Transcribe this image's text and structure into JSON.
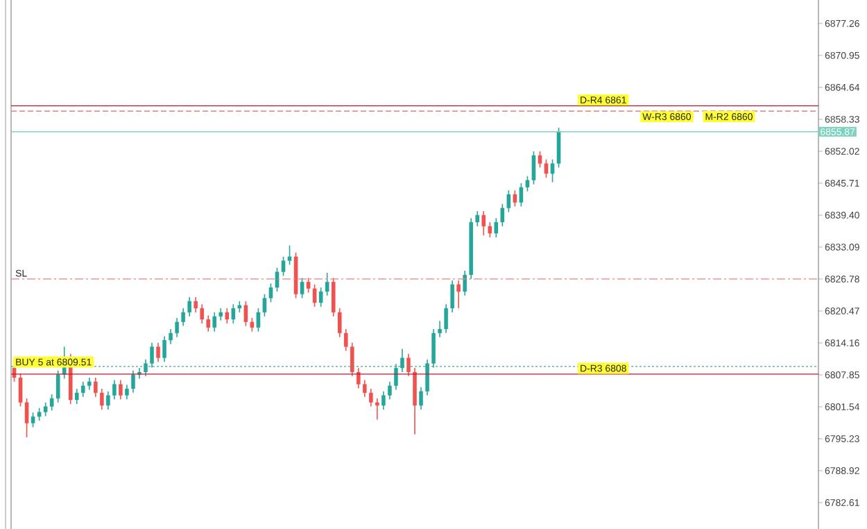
{
  "chart_data": {
    "type": "candlestick",
    "categories": [
      null,
      null,
      null,
      null,
      null,
      null,
      null,
      null,
      null,
      null,
      null,
      null,
      null,
      null,
      null,
      null,
      null,
      null,
      null,
      null,
      null,
      null,
      null,
      null,
      null,
      null,
      null,
      null,
      null,
      null,
      null,
      null,
      null,
      null,
      null,
      null,
      null,
      null,
      null,
      null,
      null,
      null,
      null,
      null,
      null,
      null,
      null,
      null,
      null,
      null,
      null,
      null,
      null,
      null,
      null,
      null,
      null,
      null,
      null,
      null,
      null,
      null,
      null,
      null,
      null,
      null,
      null,
      null,
      null,
      null,
      null,
      null,
      null,
      null,
      null,
      null,
      null,
      null,
      null,
      null,
      null,
      null,
      null,
      null,
      null,
      null,
      null,
      null,
      null,
      null,
      null,
      null,
      null,
      null,
      null,
      null,
      null,
      null,
      null,
      null,
      null,
      null,
      null,
      null,
      null,
      null,
      null,
      null,
      null,
      null,
      null,
      null,
      null,
      null,
      null,
      null,
      null,
      null,
      null,
      null,
      null,
      null,
      null,
      null,
      null,
      null,
      null,
      null,
      null
    ],
    "ohlc": [
      [
        6809.2,
        6810.0,
        6806.5,
        6807.3
      ],
      [
        6807.3,
        6808.1,
        6801.6,
        6802.4
      ],
      [
        6802.4,
        6803.2,
        6795.5,
        6798.3
      ],
      [
        6798.3,
        6800.4,
        6797.5,
        6799.6
      ],
      [
        6799.6,
        6801.3,
        6798.8,
        6800.5
      ],
      [
        6800.5,
        6802.4,
        6799.7,
        6801.6
      ],
      [
        6801.6,
        6804.0,
        6800.8,
        6803.2
      ],
      [
        6803.2,
        6808.7,
        6802.4,
        6807.9
      ],
      [
        6807.9,
        6813.4,
        6807.1,
        6811.2
      ],
      [
        6811.2,
        6812.0,
        6802.1,
        6802.9
      ],
      [
        6802.9,
        6805.1,
        6802.1,
        6804.3
      ],
      [
        6804.3,
        6806.5,
        6803.5,
        6805.7
      ],
      [
        6805.7,
        6807.3,
        6804.9,
        6806.5
      ],
      [
        6806.5,
        6807.3,
        6803.5,
        6804.3
      ],
      [
        6804.3,
        6805.1,
        6801.0,
        6801.8
      ],
      [
        6801.8,
        6804.6,
        6801.0,
        6803.8
      ],
      [
        6803.8,
        6806.8,
        6803.0,
        6806.0
      ],
      [
        6806.0,
        6806.8,
        6803.0,
        6803.8
      ],
      [
        6803.8,
        6805.9,
        6803.0,
        6805.1
      ],
      [
        6805.1,
        6808.7,
        6804.3,
        6807.9
      ],
      [
        6807.9,
        6809.2,
        6807.1,
        6808.4
      ],
      [
        6808.4,
        6810.9,
        6807.6,
        6810.1
      ],
      [
        6810.1,
        6814.2,
        6809.3,
        6813.4
      ],
      [
        6813.4,
        6814.2,
        6810.4,
        6811.2
      ],
      [
        6811.2,
        6815.5,
        6810.4,
        6814.7
      ],
      [
        6814.7,
        6816.9,
        6813.9,
        6816.1
      ],
      [
        6816.1,
        6819.1,
        6815.3,
        6818.3
      ],
      [
        6818.3,
        6821.0,
        6817.5,
        6820.2
      ],
      [
        6820.2,
        6823.2,
        6819.4,
        6822.4
      ],
      [
        6822.4,
        6823.2,
        6820.2,
        6821.0
      ],
      [
        6821.0,
        6821.8,
        6818.0,
        6818.8
      ],
      [
        6818.8,
        6819.6,
        6816.4,
        6817.2
      ],
      [
        6817.2,
        6820.2,
        6816.4,
        6819.4
      ],
      [
        6819.4,
        6821.0,
        6818.6,
        6820.2
      ],
      [
        6820.2,
        6821.0,
        6818.0,
        6818.8
      ],
      [
        6818.8,
        6821.8,
        6818.0,
        6821.0
      ],
      [
        6821.0,
        6822.4,
        6820.2,
        6821.6
      ],
      [
        6821.6,
        6822.4,
        6817.5,
        6818.3
      ],
      [
        6818.3,
        6819.1,
        6816.4,
        6817.2
      ],
      [
        6817.2,
        6821.0,
        6816.4,
        6820.2
      ],
      [
        6820.2,
        6823.8,
        6819.4,
        6823.0
      ],
      [
        6823.0,
        6825.9,
        6822.2,
        6825.1
      ],
      [
        6825.1,
        6829.0,
        6824.3,
        6828.2
      ],
      [
        6828.2,
        6831.2,
        6827.4,
        6830.4
      ],
      [
        6830.4,
        6833.4,
        6829.6,
        6831.2
      ],
      [
        6831.2,
        6832.0,
        6823.0,
        6823.8
      ],
      [
        6823.8,
        6827.0,
        6823.0,
        6826.2
      ],
      [
        6826.2,
        6827.0,
        6824.1,
        6824.9
      ],
      [
        6824.9,
        6825.7,
        6821.3,
        6822.1
      ],
      [
        6822.1,
        6825.1,
        6821.3,
        6824.3
      ],
      [
        6824.3,
        6828.0,
        6823.5,
        6826.2
      ],
      [
        6826.2,
        6827.0,
        6819.4,
        6820.2
      ],
      [
        6820.2,
        6821.0,
        6815.3,
        6816.1
      ],
      [
        6816.1,
        6816.9,
        6812.6,
        6813.4
      ],
      [
        6813.4,
        6814.2,
        6807.6,
        6808.4
      ],
      [
        6808.4,
        6809.2,
        6805.2,
        6806.0
      ],
      [
        6806.0,
        6806.8,
        6803.5,
        6804.3
      ],
      [
        6804.3,
        6805.1,
        6801.6,
        6802.4
      ],
      [
        6802.4,
        6803.2,
        6799.0,
        6801.8
      ],
      [
        6801.8,
        6804.6,
        6801.0,
        6803.8
      ],
      [
        6803.8,
        6806.5,
        6803.0,
        6805.7
      ],
      [
        6805.7,
        6810.0,
        6804.9,
        6809.2
      ],
      [
        6809.2,
        6813.0,
        6808.4,
        6811.2
      ],
      [
        6811.2,
        6812.0,
        6807.6,
        6808.4
      ],
      [
        6808.4,
        6809.2,
        6796.1,
        6801.8
      ],
      [
        6801.8,
        6805.4,
        6801.0,
        6804.6
      ],
      [
        6804.6,
        6810.9,
        6803.8,
        6810.1
      ],
      [
        6810.1,
        6816.9,
        6809.3,
        6816.1
      ],
      [
        6816.1,
        6818.5,
        6815.3,
        6816.9
      ],
      [
        6816.9,
        6821.8,
        6816.1,
        6821.0
      ],
      [
        6821.0,
        6826.5,
        6820.2,
        6825.7
      ],
      [
        6825.7,
        6826.5,
        6821.0,
        6824.3
      ],
      [
        6824.3,
        6828.4,
        6823.5,
        6827.6
      ],
      [
        6827.6,
        6838.8,
        6826.8,
        6838.0
      ],
      [
        6838.0,
        6840.2,
        6837.2,
        6839.4
      ],
      [
        6839.4,
        6840.2,
        6835.4,
        6837.2
      ],
      [
        6837.2,
        6838.0,
        6835.0,
        6835.8
      ],
      [
        6835.8,
        6838.8,
        6835.0,
        6838.0
      ],
      [
        6838.0,
        6841.6,
        6837.2,
        6840.8
      ],
      [
        6840.8,
        6844.3,
        6840.0,
        6843.5
      ],
      [
        6843.5,
        6844.3,
        6841.1,
        6841.9
      ],
      [
        6841.9,
        6845.7,
        6841.1,
        6844.9
      ],
      [
        6844.9,
        6847.1,
        6844.1,
        6846.3
      ],
      [
        6846.3,
        6852.0,
        6845.5,
        6851.2
      ],
      [
        6851.2,
        6852.0,
        6848.8,
        6849.6
      ],
      [
        6849.6,
        6850.4,
        6846.8,
        6847.6
      ],
      [
        6847.6,
        6850.4,
        6845.9,
        6849.6
      ],
      [
        6849.6,
        6856.7,
        6848.8,
        6855.9
      ],
      null,
      null,
      null,
      null,
      null,
      null,
      null,
      null,
      null,
      null,
      null,
      null,
      null,
      null,
      null,
      null,
      null,
      null,
      null,
      null,
      null,
      null,
      null,
      null,
      null,
      null,
      null,
      null,
      null,
      null,
      null,
      null,
      null,
      null,
      null,
      null,
      null,
      null,
      null,
      null,
      null
    ],
    "colors": [
      "#ef5350",
      "#ef5350",
      "#ef5350",
      "#26a69a",
      "#26a69a",
      "#26a69a",
      "#26a69a",
      "#26a69a",
      "#26a69a",
      "#ef5350",
      "#26a69a",
      "#26a69a",
      "#26a69a",
      "#ef5350",
      "#ef5350",
      "#26a69a",
      "#26a69a",
      "#ef5350",
      "#26a69a",
      "#26a69a",
      "#26a69a",
      "#26a69a",
      "#26a69a",
      "#ef5350",
      "#26a69a",
      "#26a69a",
      "#26a69a",
      "#26a69a",
      "#26a69a",
      "#ef5350",
      "#ef5350",
      "#ef5350",
      "#26a69a",
      "#26a69a",
      "#ef5350",
      "#26a69a",
      "#26a69a",
      "#ef5350",
      "#ef5350",
      "#26a69a",
      "#26a69a",
      "#26a69a",
      "#26a69a",
      "#26a69a",
      "#26a69a",
      "#ef5350",
      "#26a69a",
      "#ef5350",
      "#ef5350",
      "#26a69a",
      "#26a69a",
      "#ef5350",
      "#ef5350",
      "#ef5350",
      "#ef5350",
      "#ef5350",
      "#ef5350",
      "#ef5350",
      "#ef5350",
      "#26a69a",
      "#26a69a",
      "#26a69a",
      "#26a69a",
      "#ef5350",
      "#ef5350",
      "#26a69a",
      "#26a69a",
      "#26a69a",
      "#26a69a",
      "#26a69a",
      "#26a69a",
      "#ef5350",
      "#26a69a",
      "#26a69a",
      "#26a69a",
      "#ef5350",
      "#ef5350",
      "#26a69a",
      "#26a69a",
      "#26a69a",
      "#ef5350",
      "#26a69a",
      "#26a69a",
      "#26a69a",
      "#ef5350",
      "#ef5350",
      "#26a69a",
      "#26a69a",
      null,
      null,
      null,
      null,
      null,
      null,
      null,
      null,
      null,
      null,
      null,
      null,
      null,
      null,
      null,
      null,
      null,
      null,
      null,
      null,
      null,
      null,
      null,
      null,
      null,
      null,
      null,
      null,
      null,
      null,
      null,
      null,
      null,
      null,
      null,
      null,
      null,
      null,
      null,
      null,
      null
    ],
    "ylim": [
      6777.4,
      6881.9
    ],
    "yticks": [
      {
        "value": 6877.26,
        "label": "6877.26"
      },
      {
        "value": 6870.95,
        "label": "6870.95"
      },
      {
        "value": 6864.64,
        "label": "6864.64"
      },
      {
        "value": 6858.33,
        "label": "6858.33"
      },
      {
        "value": 6852.02,
        "label": "6852.02"
      },
      {
        "value": 6845.71,
        "label": "6845.71"
      },
      {
        "value": 6839.4,
        "label": "6839.40"
      },
      {
        "value": 6833.09,
        "label": "6833.09"
      },
      {
        "value": 6826.78,
        "label": "6826.78"
      },
      {
        "value": 6820.47,
        "label": "6820.47"
      },
      {
        "value": 6814.16,
        "label": "6814.16"
      },
      {
        "value": 6807.85,
        "label": "6807.85"
      },
      {
        "value": 6801.54,
        "label": "6801.54"
      },
      {
        "value": 6795.23,
        "label": "6795.23"
      },
      {
        "value": 6788.92,
        "label": "6788.92"
      },
      {
        "value": 6782.61,
        "label": "6782.61"
      }
    ],
    "tick_labels": "y",
    "ref_lines": [
      {
        "axis": "y",
        "value": 6861,
        "label": "D-R4 6861",
        "color": "#c8102e",
        "line_style": "solid"
      },
      {
        "axis": "y",
        "value": 6860,
        "label": "W-R3 6860",
        "color": "#b22222",
        "line_style": "dashed"
      },
      {
        "axis": "y",
        "value": 6860,
        "label": "M-R2 6860",
        "color": "#f4a0a0",
        "line_style": "dashed"
      },
      {
        "axis": "y",
        "value": 6855.87,
        "label": "6855.87",
        "color": "#7fd1c1",
        "line_style": "solid"
      },
      {
        "axis": "y",
        "value": 6826.78,
        "label": "SL",
        "color": "#f08080",
        "line_style": "dashdot"
      },
      {
        "axis": "y",
        "value": 6809.51,
        "label": "BUY 5 at 6809.51",
        "color": "#3aa89a",
        "line_style": "dotted"
      },
      {
        "axis": "y",
        "value": 6808,
        "label": "D-R3 6808",
        "color": "#c8102e",
        "line_style": "solid"
      }
    ]
  }
}
